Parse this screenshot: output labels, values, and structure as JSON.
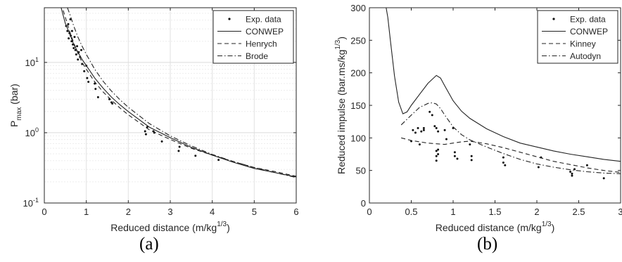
{
  "captions": {
    "a": "(a)",
    "b": "(b)"
  },
  "chart_data": [
    {
      "type": "scatter",
      "panel": "a",
      "xlabel": "Reduced distance (m/kg",
      "xlabel_sup": "1/3",
      "xlabel_end": ")",
      "ylabel": "P",
      "ylabel_sub": "max",
      "ylabel_end": " (bar)",
      "xlim": [
        0,
        6
      ],
      "ylim": [
        0.1,
        60
      ],
      "yscale": "log",
      "grid": true,
      "legend_position": "top-right",
      "xticks": [
        "0",
        "1",
        "2",
        "3",
        "4",
        "5",
        "6"
      ],
      "yticks": [
        {
          "base": "10",
          "exp": "-1"
        },
        {
          "base": "10",
          "exp": "0"
        },
        {
          "base": "10",
          "exp": "1"
        }
      ],
      "series": [
        {
          "name": "Exp. data",
          "style": "dots",
          "x": [
            0.52,
            0.55,
            0.57,
            0.58,
            0.6,
            0.62,
            0.63,
            0.65,
            0.66,
            0.68,
            0.7,
            0.72,
            0.74,
            0.76,
            0.78,
            0.8,
            0.82,
            0.85,
            0.88,
            0.9,
            0.95,
            1.0,
            1.02,
            1.05,
            1.2,
            1.22,
            1.28,
            1.55,
            1.6,
            1.62,
            2.4,
            2.42,
            2.45,
            2.6,
            2.62,
            2.8,
            3.2,
            3.22,
            3.6,
            4.15
          ],
          "y": [
            33,
            28,
            35,
            22,
            26,
            41,
            24,
            20,
            28,
            18,
            16,
            23,
            15,
            13,
            17,
            11,
            14,
            12,
            15,
            9.5,
            7.5,
            9,
            6,
            5.3,
            5,
            4.2,
            3.2,
            3,
            2.7,
            2.6,
            1.05,
            0.95,
            1.2,
            1.05,
            1.0,
            0.75,
            0.55,
            0.63,
            0.47,
            0.41
          ]
        },
        {
          "name": "CONWEP",
          "style": "solid",
          "x": [
            0.4,
            0.5,
            0.6,
            0.7,
            0.8,
            0.9,
            1.0,
            1.2,
            1.4,
            1.6,
            1.8,
            2.0,
            2.5,
            3.0,
            3.5,
            4.0,
            4.5,
            5.0,
            5.5,
            6.0
          ],
          "y": [
            60,
            36,
            26,
            18,
            14,
            11,
            9.0,
            6.0,
            4.3,
            3.2,
            2.5,
            2.0,
            1.2,
            0.85,
            0.62,
            0.48,
            0.38,
            0.31,
            0.27,
            0.235
          ]
        },
        {
          "name": "Henrych",
          "style": "dashed",
          "x": [
            0.45,
            0.5,
            0.6,
            0.7,
            0.8,
            0.9,
            1.0,
            1.2,
            1.4,
            1.6,
            1.8,
            2.0,
            2.5,
            3.0,
            3.5,
            4.0,
            4.5,
            5.0,
            5.5,
            6.0
          ],
          "y": [
            55,
            44,
            28,
            19,
            13.5,
            10,
            8.0,
            5.3,
            3.8,
            2.9,
            2.25,
            1.8,
            1.1,
            0.8,
            0.6,
            0.48,
            0.39,
            0.32,
            0.28,
            0.24
          ]
        },
        {
          "name": "Brode",
          "style": "dashdot",
          "x": [
            0.55,
            0.6,
            0.7,
            0.8,
            0.9,
            1.0,
            1.2,
            1.4,
            1.6,
            1.8,
            2.0,
            2.5,
            3.0,
            3.5,
            4.0,
            4.5,
            5.0,
            5.5,
            6.0
          ],
          "y": [
            60,
            50,
            33,
            23,
            17,
            13,
            8.0,
            5.4,
            3.9,
            2.95,
            2.3,
            1.35,
            0.9,
            0.65,
            0.49,
            0.39,
            0.32,
            0.27,
            0.23
          ]
        }
      ]
    },
    {
      "type": "scatter",
      "panel": "b",
      "xlabel": "Reduced distance (m/kg",
      "xlabel_sup": "1/3",
      "xlabel_end": ")",
      "ylabel": "Reduced impulse (bar.ms/kg",
      "ylabel_sup": "1/3",
      "ylabel_end": ")",
      "xlim": [
        0,
        3
      ],
      "ylim": [
        0,
        300
      ],
      "grid": false,
      "legend_position": "top-right",
      "xticks": [
        "0",
        "0.5",
        "1",
        "1.5",
        "2",
        "2.5",
        "3"
      ],
      "yticks": [
        "0",
        "50",
        "100",
        "150",
        "200",
        "250",
        "300"
      ],
      "series": [
        {
          "name": "Exp. data",
          "style": "dots",
          "x": [
            0.5,
            0.52,
            0.55,
            0.58,
            0.6,
            0.62,
            0.65,
            0.65,
            0.72,
            0.75,
            0.78,
            0.8,
            0.8,
            0.8,
            0.8,
            0.82,
            0.82,
            0.82,
            0.9,
            0.92,
            1.0,
            1.02,
            1.02,
            1.05,
            1.2,
            1.22,
            1.22,
            1.6,
            1.6,
            1.62,
            2.02,
            2.05,
            2.4,
            2.42,
            2.42,
            2.45,
            2.6,
            2.8
          ],
          "y": [
            95,
            112,
            108,
            115,
            90,
            110,
            115,
            112,
            140,
            135,
            118,
            115,
            80,
            72,
            65,
            110,
            82,
            75,
            112,
            98,
            115,
            78,
            72,
            68,
            90,
            72,
            66,
            70,
            62,
            58,
            55,
            70,
            48,
            45,
            42,
            52,
            58,
            38
          ]
        },
        {
          "name": "CONWEP",
          "style": "solid",
          "x": [
            0.2,
            0.22,
            0.25,
            0.3,
            0.35,
            0.4,
            0.45,
            0.5,
            0.6,
            0.7,
            0.8,
            0.85,
            0.9,
            1.0,
            1.1,
            1.2,
            1.4,
            1.6,
            1.8,
            2.0,
            2.2,
            2.4,
            2.6,
            2.8,
            3.0
          ],
          "y": [
            300,
            285,
            250,
            195,
            155,
            137,
            140,
            150,
            167,
            184,
            196,
            192,
            180,
            157,
            141,
            130,
            114,
            102,
            92,
            86,
            80,
            75,
            71,
            67,
            64
          ]
        },
        {
          "name": "Kinney",
          "style": "dashed",
          "x": [
            0.38,
            0.5,
            0.6,
            0.7,
            0.8,
            0.9,
            1.0,
            1.1,
            1.2,
            1.3,
            1.4,
            1.6,
            1.8,
            2.0,
            2.2,
            2.4,
            2.6,
            2.8,
            3.0
          ],
          "y": [
            100,
            96,
            94,
            92,
            91,
            90,
            92,
            94,
            95,
            93,
            91,
            85,
            78,
            71,
            64,
            59,
            54,
            50,
            47
          ]
        },
        {
          "name": "Autodyn",
          "style": "dashdot",
          "x": [
            0.38,
            0.5,
            0.6,
            0.7,
            0.75,
            0.8,
            0.85,
            0.9,
            1.0,
            1.1,
            1.2,
            1.4,
            1.6,
            1.8,
            2.0,
            2.2,
            2.4,
            2.6,
            2.8,
            3.0
          ],
          "y": [
            120,
            135,
            147,
            153,
            154,
            152,
            145,
            135,
            117,
            105,
            97,
            86,
            76,
            67,
            60,
            55,
            51,
            48,
            46,
            45
          ]
        }
      ]
    }
  ]
}
